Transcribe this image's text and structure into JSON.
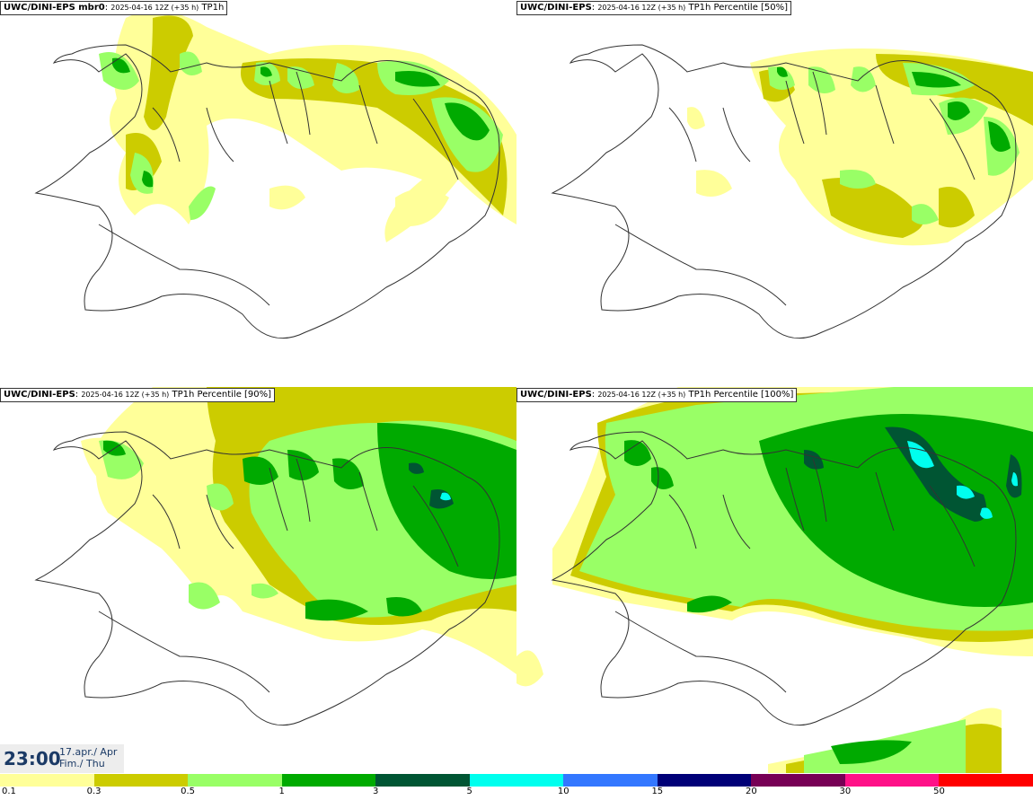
{
  "panels": [
    {
      "model": "UWC/DINI-EPS mbr0",
      "run": "2025-04-16 12Z (+35 h)",
      "field": "TP1h"
    },
    {
      "model": "UWC/DINI-EPS",
      "run": "2025-04-16 12Z (+35 h)",
      "field": "TP1h Percentile [50%]"
    },
    {
      "model": "UWC/DINI-EPS",
      "run": "2025-04-16 12Z (+35 h)",
      "field": "TP1h Percentile [90%]"
    },
    {
      "model": "UWC/DINI-EPS",
      "run": "2025-04-16 12Z (+35 h)",
      "field": "TP1h Percentile [100%]"
    }
  ],
  "valid_time": {
    "time": "23:00",
    "date_line1": "17.apr./ Apr",
    "date_line2": "Fim./ Thu"
  },
  "legend": {
    "labels": [
      "0.1",
      "0.3",
      "0.5",
      "1",
      "3",
      "5",
      "10",
      "15",
      "20",
      "30",
      "50"
    ],
    "colors": [
      "#ffff99",
      "#cccc00",
      "#99ff66",
      "#00aa00",
      "#005533",
      "#00ffee",
      "#3377ff",
      "#000077",
      "#770055",
      "#ff1188",
      "#ff0000"
    ]
  }
}
